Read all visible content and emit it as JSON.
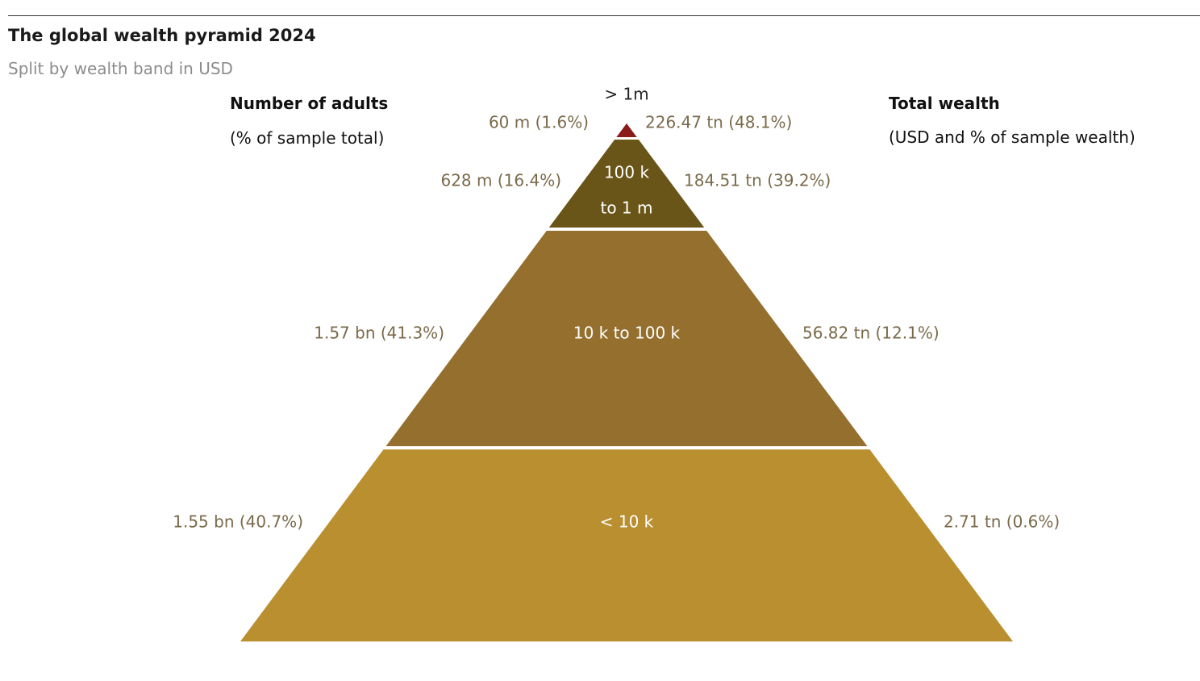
{
  "title": "The global wealth pyramid 2024",
  "subtitle": "Split by wealth band in USD",
  "left_header": {
    "title": "Number of adults",
    "note": "(% of sample total)"
  },
  "right_header": {
    "title": "Total wealth",
    "note": "(USD and % of sample wealth)"
  },
  "chart_data": {
    "type": "pyramid",
    "bands": [
      {
        "label_lines": [
          "> 1m"
        ],
        "adults": "60 m (1.6%)",
        "wealth": "226.47 tn (48.1%)",
        "adults_pct": 1.6,
        "wealth_pct": 48.1,
        "color": "#8b1a1a"
      },
      {
        "label_lines": [
          "100 k",
          "to 1 m"
        ],
        "adults": "628 m (16.4%)",
        "wealth": "184.51 tn (39.2%)",
        "adults_pct": 16.4,
        "wealth_pct": 39.2,
        "color": "#6a5518"
      },
      {
        "label_lines": [
          "10 k to 100 k"
        ],
        "adults": "1.57 bn (41.3%)",
        "wealth": "56.82 tn (12.1%)",
        "adults_pct": 41.3,
        "wealth_pct": 12.1,
        "color": "#946f2d"
      },
      {
        "label_lines": [
          "< 10 k"
        ],
        "adults": "1.55 bn (40.7%)",
        "wealth": "2.71 tn (0.6%)",
        "adults_pct": 40.7,
        "wealth_pct": 0.6,
        "color": "#b98f2f"
      }
    ],
    "value_text_color": "#7a6a4a"
  }
}
